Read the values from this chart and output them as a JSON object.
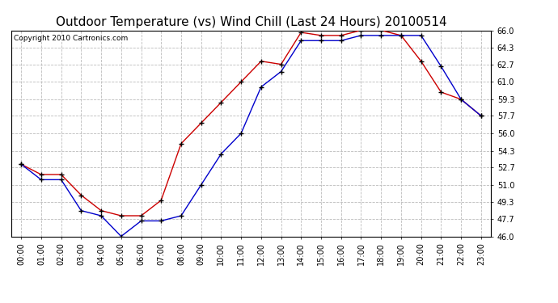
{
  "title": "Outdoor Temperature (vs) Wind Chill (Last 24 Hours) 20100514",
  "copyright": "Copyright 2010 Cartronics.com",
  "hours": [
    "00:00",
    "01:00",
    "02:00",
    "03:00",
    "04:00",
    "05:00",
    "06:00",
    "07:00",
    "08:00",
    "09:00",
    "10:00",
    "11:00",
    "12:00",
    "13:00",
    "14:00",
    "15:00",
    "16:00",
    "17:00",
    "18:00",
    "19:00",
    "20:00",
    "21:00",
    "22:00",
    "23:00"
  ],
  "temp": [
    53.0,
    52.0,
    52.0,
    50.0,
    48.5,
    48.0,
    48.0,
    49.5,
    55.0,
    57.0,
    59.0,
    61.0,
    63.0,
    62.7,
    65.8,
    65.5,
    65.5,
    66.0,
    66.0,
    65.5,
    63.0,
    60.0,
    59.3,
    57.7
  ],
  "wind_chill": [
    53.0,
    51.5,
    51.5,
    48.5,
    48.0,
    46.0,
    47.5,
    47.5,
    48.0,
    51.0,
    54.0,
    56.0,
    60.5,
    62.0,
    65.0,
    65.0,
    65.0,
    65.5,
    65.5,
    65.5,
    65.5,
    62.5,
    59.3,
    57.7
  ],
  "temp_color": "#cc0000",
  "wind_chill_color": "#0000cc",
  "bg_color": "#ffffff",
  "plot_bg_color": "#ffffff",
  "grid_color": "#bbbbbb",
  "ylim_min": 46.0,
  "ylim_max": 66.0,
  "yticks": [
    46.0,
    47.7,
    49.3,
    51.0,
    52.7,
    54.3,
    56.0,
    57.7,
    59.3,
    61.0,
    62.7,
    64.3,
    66.0
  ],
  "title_fontsize": 11,
  "copyright_fontsize": 6.5
}
